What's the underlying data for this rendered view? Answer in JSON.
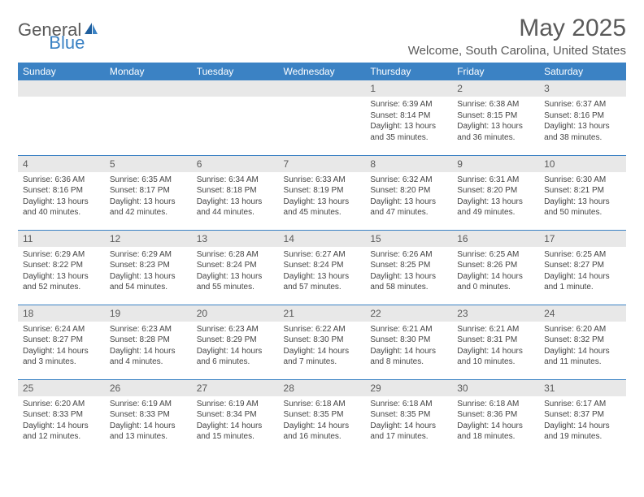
{
  "logo": {
    "text_general": "General",
    "text_blue": "Blue"
  },
  "header": {
    "month_year": "May 2025",
    "location": "Welcome, South Carolina, United States"
  },
  "colors": {
    "header_bg": "#3b82c4",
    "header_text": "#ffffff",
    "daynum_bg": "#e8e8e8",
    "text": "#5a5a5a",
    "rule": "#3b82c4"
  },
  "day_labels": [
    "Sunday",
    "Monday",
    "Tuesday",
    "Wednesday",
    "Thursday",
    "Friday",
    "Saturday"
  ],
  "weeks": [
    [
      null,
      null,
      null,
      null,
      {
        "n": "1",
        "sr": "6:39 AM",
        "ss": "8:14 PM",
        "dl": "13 hours and 35 minutes."
      },
      {
        "n": "2",
        "sr": "6:38 AM",
        "ss": "8:15 PM",
        "dl": "13 hours and 36 minutes."
      },
      {
        "n": "3",
        "sr": "6:37 AM",
        "ss": "8:16 PM",
        "dl": "13 hours and 38 minutes."
      }
    ],
    [
      {
        "n": "4",
        "sr": "6:36 AM",
        "ss": "8:16 PM",
        "dl": "13 hours and 40 minutes."
      },
      {
        "n": "5",
        "sr": "6:35 AM",
        "ss": "8:17 PM",
        "dl": "13 hours and 42 minutes."
      },
      {
        "n": "6",
        "sr": "6:34 AM",
        "ss": "8:18 PM",
        "dl": "13 hours and 44 minutes."
      },
      {
        "n": "7",
        "sr": "6:33 AM",
        "ss": "8:19 PM",
        "dl": "13 hours and 45 minutes."
      },
      {
        "n": "8",
        "sr": "6:32 AM",
        "ss": "8:20 PM",
        "dl": "13 hours and 47 minutes."
      },
      {
        "n": "9",
        "sr": "6:31 AM",
        "ss": "8:20 PM",
        "dl": "13 hours and 49 minutes."
      },
      {
        "n": "10",
        "sr": "6:30 AM",
        "ss": "8:21 PM",
        "dl": "13 hours and 50 minutes."
      }
    ],
    [
      {
        "n": "11",
        "sr": "6:29 AM",
        "ss": "8:22 PM",
        "dl": "13 hours and 52 minutes."
      },
      {
        "n": "12",
        "sr": "6:29 AM",
        "ss": "8:23 PM",
        "dl": "13 hours and 54 minutes."
      },
      {
        "n": "13",
        "sr": "6:28 AM",
        "ss": "8:24 PM",
        "dl": "13 hours and 55 minutes."
      },
      {
        "n": "14",
        "sr": "6:27 AM",
        "ss": "8:24 PM",
        "dl": "13 hours and 57 minutes."
      },
      {
        "n": "15",
        "sr": "6:26 AM",
        "ss": "8:25 PM",
        "dl": "13 hours and 58 minutes."
      },
      {
        "n": "16",
        "sr": "6:25 AM",
        "ss": "8:26 PM",
        "dl": "14 hours and 0 minutes."
      },
      {
        "n": "17",
        "sr": "6:25 AM",
        "ss": "8:27 PM",
        "dl": "14 hours and 1 minute."
      }
    ],
    [
      {
        "n": "18",
        "sr": "6:24 AM",
        "ss": "8:27 PM",
        "dl": "14 hours and 3 minutes."
      },
      {
        "n": "19",
        "sr": "6:23 AM",
        "ss": "8:28 PM",
        "dl": "14 hours and 4 minutes."
      },
      {
        "n": "20",
        "sr": "6:23 AM",
        "ss": "8:29 PM",
        "dl": "14 hours and 6 minutes."
      },
      {
        "n": "21",
        "sr": "6:22 AM",
        "ss": "8:30 PM",
        "dl": "14 hours and 7 minutes."
      },
      {
        "n": "22",
        "sr": "6:21 AM",
        "ss": "8:30 PM",
        "dl": "14 hours and 8 minutes."
      },
      {
        "n": "23",
        "sr": "6:21 AM",
        "ss": "8:31 PM",
        "dl": "14 hours and 10 minutes."
      },
      {
        "n": "24",
        "sr": "6:20 AM",
        "ss": "8:32 PM",
        "dl": "14 hours and 11 minutes."
      }
    ],
    [
      {
        "n": "25",
        "sr": "6:20 AM",
        "ss": "8:33 PM",
        "dl": "14 hours and 12 minutes."
      },
      {
        "n": "26",
        "sr": "6:19 AM",
        "ss": "8:33 PM",
        "dl": "14 hours and 13 minutes."
      },
      {
        "n": "27",
        "sr": "6:19 AM",
        "ss": "8:34 PM",
        "dl": "14 hours and 15 minutes."
      },
      {
        "n": "28",
        "sr": "6:18 AM",
        "ss": "8:35 PM",
        "dl": "14 hours and 16 minutes."
      },
      {
        "n": "29",
        "sr": "6:18 AM",
        "ss": "8:35 PM",
        "dl": "14 hours and 17 minutes."
      },
      {
        "n": "30",
        "sr": "6:18 AM",
        "ss": "8:36 PM",
        "dl": "14 hours and 18 minutes."
      },
      {
        "n": "31",
        "sr": "6:17 AM",
        "ss": "8:37 PM",
        "dl": "14 hours and 19 minutes."
      }
    ]
  ],
  "labels": {
    "sunrise_prefix": "Sunrise: ",
    "sunset_prefix": "Sunset: ",
    "daylight_prefix": "Daylight: "
  }
}
